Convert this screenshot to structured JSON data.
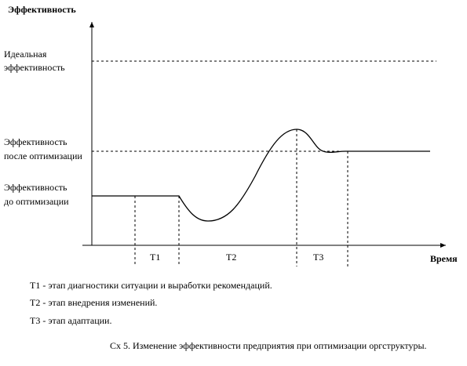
{
  "axes": {
    "y_label": "Эффективность",
    "x_label": "Время"
  },
  "levels": [
    {
      "lines": [
        "Идеальная",
        "эффективность"
      ]
    },
    {
      "lines": [
        "Эффективность",
        "после оптимизации"
      ]
    },
    {
      "lines": [
        "Эффективность",
        "до оптимизации"
      ]
    }
  ],
  "periods": [
    "T1",
    "T2",
    "T3"
  ],
  "legend": [
    "T1 - этап диагностики ситуации и выработки рекомендаций.",
    "T2 - этап внедрения изменений.",
    "T3 - этап адаптации."
  ],
  "caption": "Сх 5. Изменение эффективности предприятия при оптимизации оргструктуры."
}
